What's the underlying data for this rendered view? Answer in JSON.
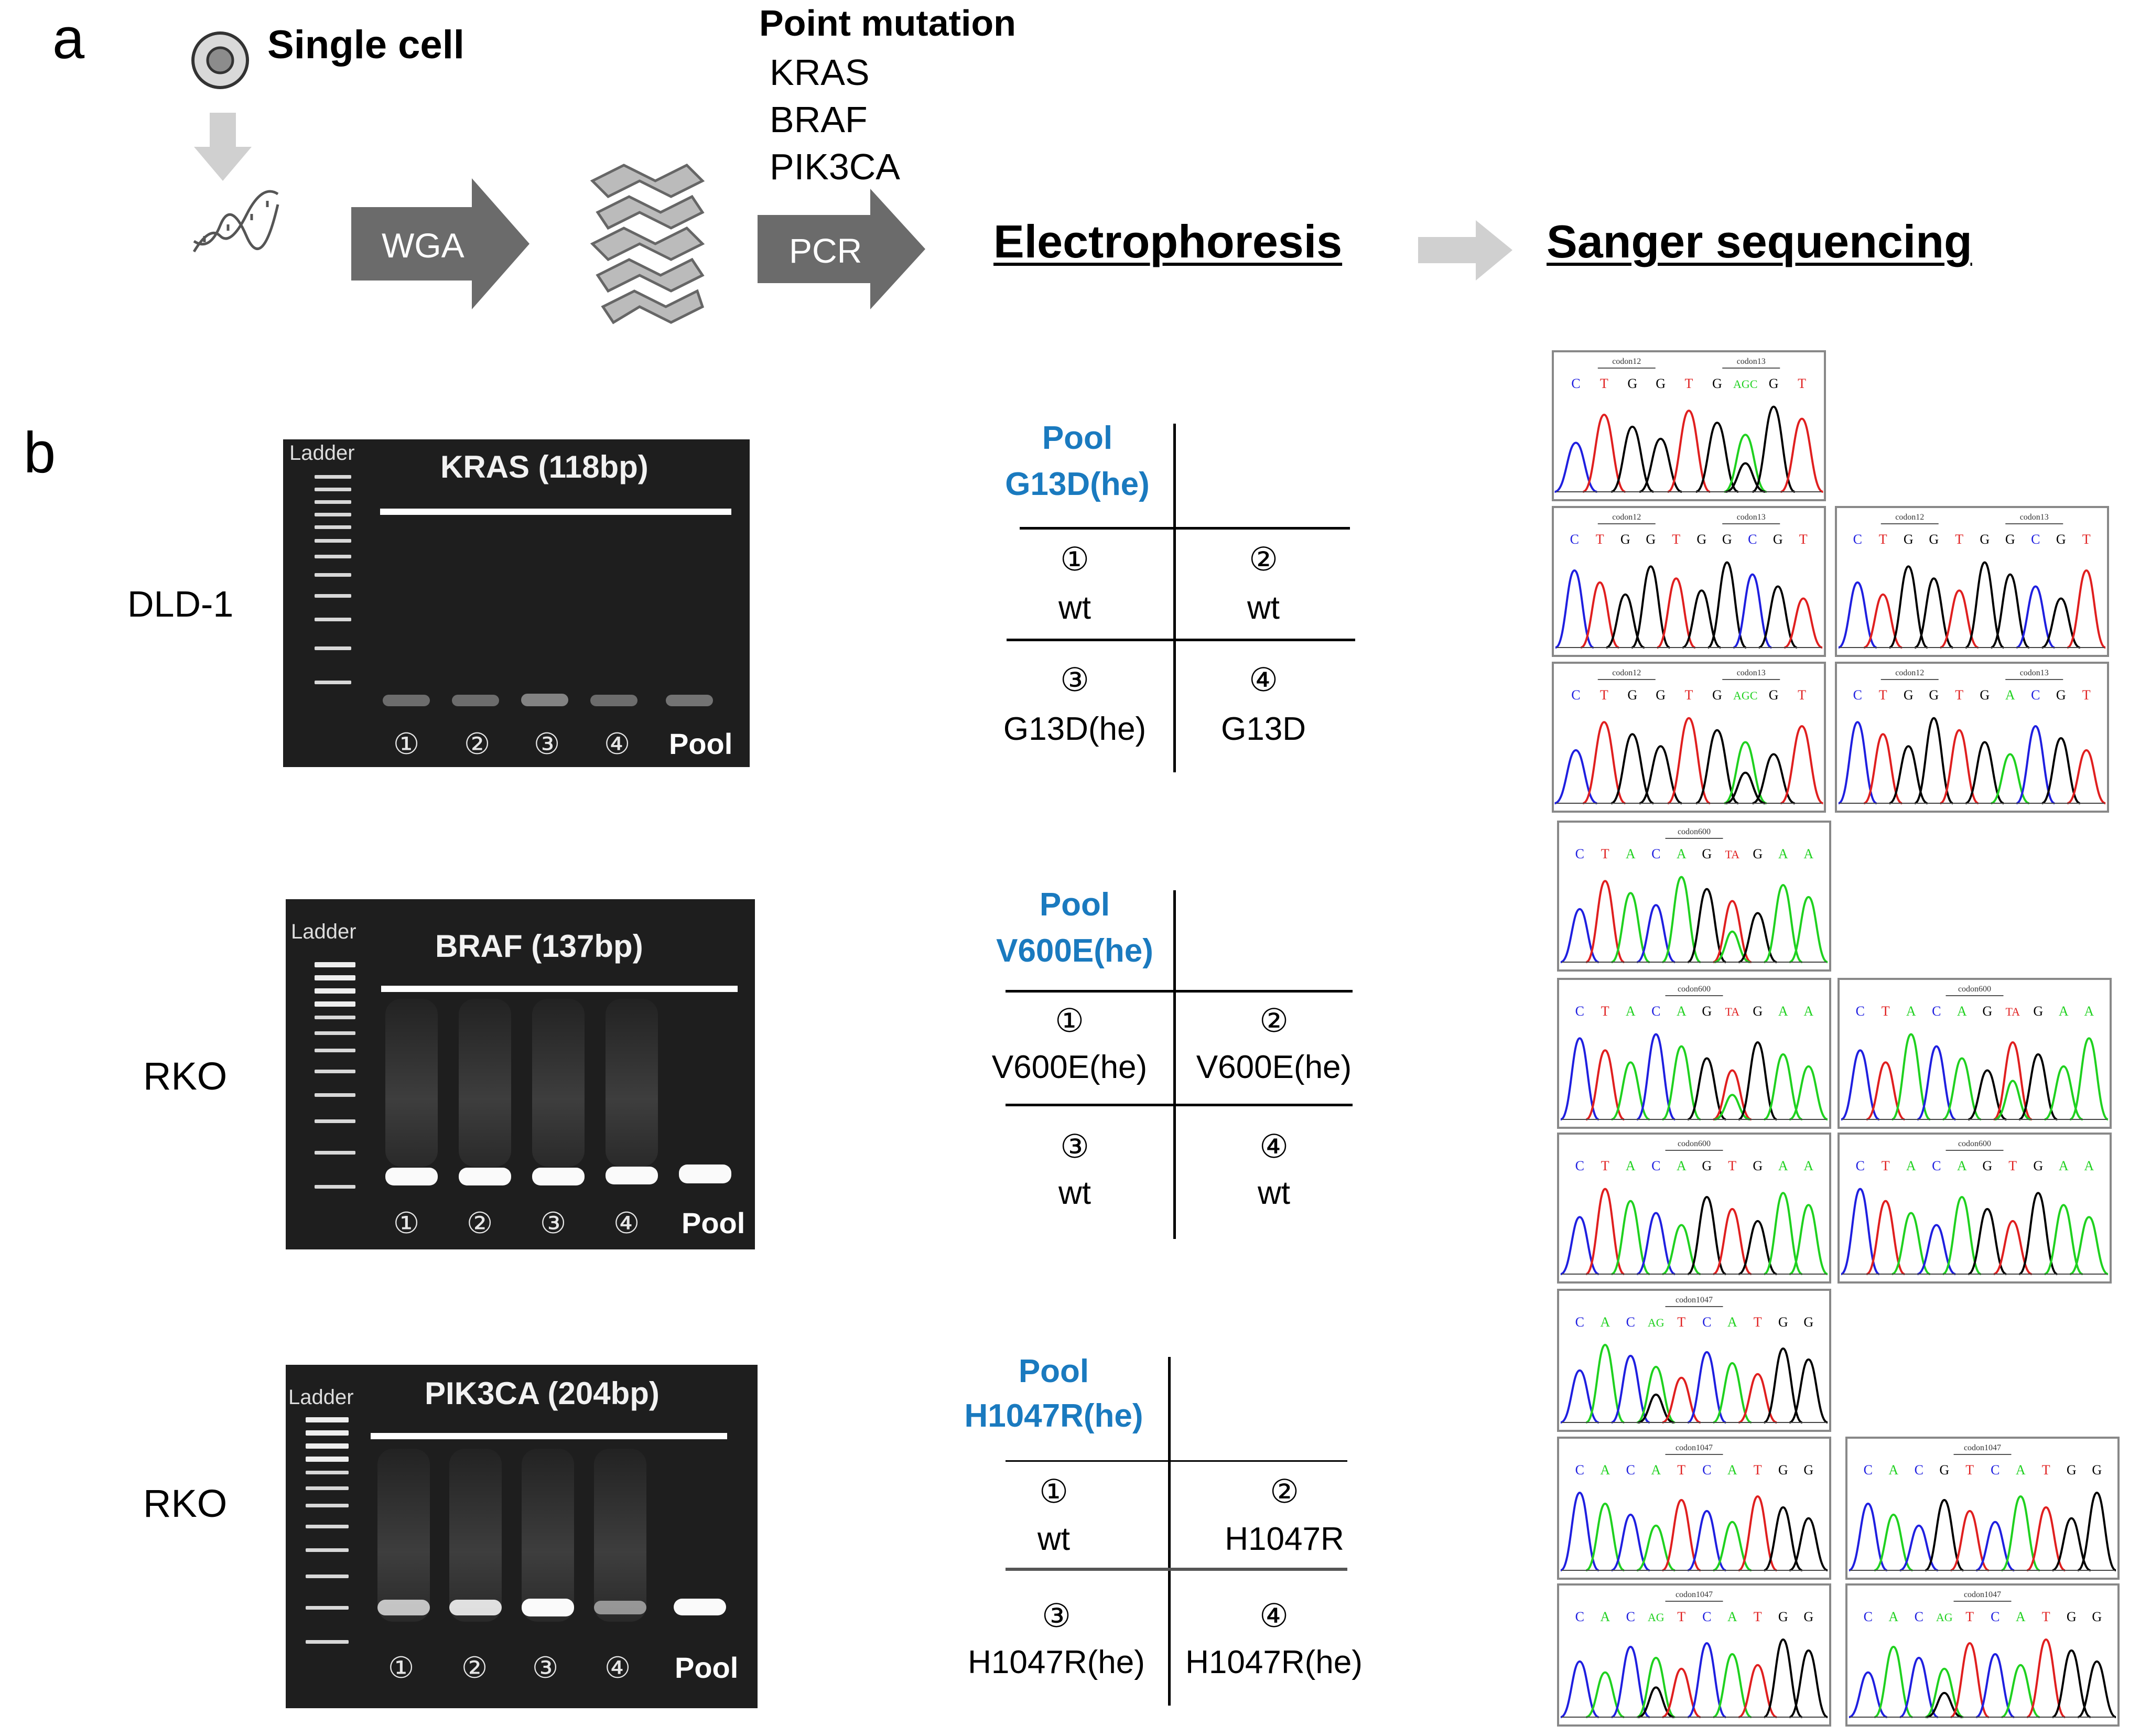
{
  "panel_a": {
    "label": "a",
    "single_cell": "Single cell",
    "wga": "WGA",
    "point_mutation": "Point mutation",
    "genes": [
      "KRAS",
      "BRAF",
      "PIK3CA"
    ],
    "pcr": "PCR",
    "electrophoresis": "Electrophoresis",
    "sanger": "Sanger sequencing"
  },
  "panel_b": {
    "label": "b",
    "rows": [
      {
        "cell_line": "DLD-1",
        "gel": {
          "ladder": "Ladder",
          "title": "KRAS (118bp)",
          "lanes": [
            "①",
            "②",
            "③",
            "④"
          ],
          "pool": "Pool"
        },
        "grid": {
          "pool_label": "Pool",
          "pool_value": "G13D(he)",
          "cells": [
            {
              "num": "①",
              "val": "wt"
            },
            {
              "num": "②",
              "val": "wt"
            },
            {
              "num": "③",
              "val": "G13D(he)"
            },
            {
              "num": "④",
              "val": "G13D"
            }
          ]
        },
        "chromatograms": [
          {
            "codons": [
              "codon12",
              "codon13"
            ],
            "bases": [
              "C",
              "T",
              "G",
              "G",
              "T",
              "G",
              "AGC",
              "G",
              "T"
            ]
          },
          {
            "codons": [
              "codon12",
              "codon13"
            ],
            "bases": [
              "C",
              "T",
              "G",
              "G",
              "T",
              "G",
              "G",
              "C",
              "G",
              "T"
            ]
          },
          {
            "codons": [
              "codon12",
              "codon13"
            ],
            "bases": [
              "C",
              "T",
              "G",
              "G",
              "T",
              "G",
              "G",
              "C",
              "G",
              "T"
            ]
          },
          {
            "codons": [
              "codon12",
              "codon13"
            ],
            "bases": [
              "C",
              "T",
              "G",
              "G",
              "T",
              "G",
              "AGC",
              "G",
              "T"
            ]
          },
          {
            "codons": [
              "codon12",
              "codon13"
            ],
            "bases": [
              "C",
              "T",
              "G",
              "G",
              "T",
              "G",
              "A",
              "C",
              "G",
              "T"
            ]
          }
        ]
      },
      {
        "cell_line": "RKO",
        "gel": {
          "ladder": "Ladder",
          "title": "BRAF (137bp)",
          "lanes": [
            "①",
            "②",
            "③",
            "④"
          ],
          "pool": "Pool"
        },
        "grid": {
          "pool_label": "Pool",
          "pool_value": "V600E(he)",
          "cells": [
            {
              "num": "①",
              "val": "V600E(he)"
            },
            {
              "num": "②",
              "val": "V600E(he)"
            },
            {
              "num": "③",
              "val": "wt"
            },
            {
              "num": "④",
              "val": "wt"
            }
          ]
        },
        "chromatograms": [
          {
            "codons": [
              "codon600"
            ],
            "bases": [
              "C",
              "T",
              "A",
              "C",
              "A",
              "G",
              "TA",
              "G",
              "A",
              "A"
            ]
          },
          {
            "codons": [
              "codon600"
            ],
            "bases": [
              "C",
              "T",
              "A",
              "C",
              "A",
              "G",
              "TA",
              "G",
              "A",
              "A"
            ]
          },
          {
            "codons": [
              "codon600"
            ],
            "bases": [
              "C",
              "T",
              "A",
              "C",
              "A",
              "G",
              "TA",
              "G",
              "A",
              "A"
            ]
          },
          {
            "codons": [
              "codon600"
            ],
            "bases": [
              "C",
              "T",
              "A",
              "C",
              "A",
              "G",
              "T",
              "G",
              "A",
              "A"
            ]
          },
          {
            "codons": [
              "codon600"
            ],
            "bases": [
              "C",
              "T",
              "A",
              "C",
              "A",
              "G",
              "T",
              "G",
              "A",
              "A"
            ]
          }
        ]
      },
      {
        "cell_line": "RKO",
        "gel": {
          "ladder": "Ladder",
          "title": "PIK3CA (204bp)",
          "lanes": [
            "①",
            "②",
            "③",
            "④"
          ],
          "pool": "Pool"
        },
        "grid": {
          "pool_label": "Pool",
          "pool_value": "H1047R(he)",
          "cells": [
            {
              "num": "①",
              "val": "wt"
            },
            {
              "num": "②",
              "val": "H1047R"
            },
            {
              "num": "③",
              "val": "H1047R(he)"
            },
            {
              "num": "④",
              "val": "H1047R(he)"
            }
          ]
        },
        "chromatograms": [
          {
            "codons": [
              "codon1047"
            ],
            "bases": [
              "C",
              "A",
              "C",
              "AG",
              "T",
              "C",
              "A",
              "T",
              "G",
              "G"
            ]
          },
          {
            "codons": [
              "codon1047"
            ],
            "bases": [
              "C",
              "A",
              "C",
              "A",
              "T",
              "C",
              "A",
              "T",
              "G",
              "G"
            ]
          },
          {
            "codons": [
              "codon1047"
            ],
            "bases": [
              "C",
              "A",
              "C",
              "G",
              "T",
              "C",
              "A",
              "T",
              "G",
              "G"
            ]
          },
          {
            "codons": [
              "codon1047"
            ],
            "bases": [
              "C",
              "A",
              "C",
              "AG",
              "T",
              "C",
              "A",
              "T",
              "G",
              "G"
            ]
          },
          {
            "codons": [
              "codon1047"
            ],
            "bases": [
              "C",
              "A",
              "C",
              "AG",
              "T",
              "C",
              "A",
              "T",
              "G",
              "G"
            ]
          }
        ]
      }
    ]
  },
  "colors": {
    "pool_text": "#1a7abf",
    "arrow_dark": "#6b6b6b",
    "arrow_light": "#d0d0d0",
    "gel_bg": "#1e1e1e",
    "trace_A": "#1fd11f",
    "trace_C": "#1f1fe0",
    "trace_G": "#000000",
    "trace_T": "#e01f1f"
  }
}
